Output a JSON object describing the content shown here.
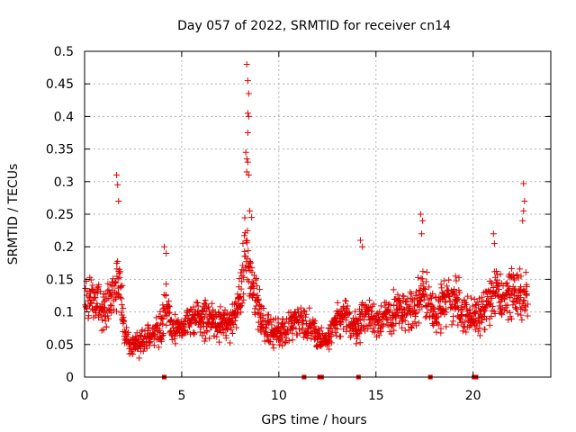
{
  "chart_data": {
    "type": "scatter",
    "title": "Day 057 of 2022, SRMTID for receiver cn14",
    "xlabel": "GPS time / hours",
    "ylabel": "SRMTID / TECUs",
    "xlim": [
      0,
      24
    ],
    "ylim": [
      0,
      0.5
    ],
    "xticks": [
      0,
      5,
      10,
      15,
      20
    ],
    "xtick_labels": [
      "0",
      "5",
      "10",
      "15",
      "20"
    ],
    "yticks": [
      0,
      0.05,
      0.1,
      0.15,
      0.2,
      0.25,
      0.3,
      0.35,
      0.4,
      0.45,
      0.5
    ],
    "ytick_labels": [
      "0",
      "0.05",
      "0.1",
      "0.15",
      "0.2",
      "0.25",
      "0.3",
      "0.35",
      "0.4",
      "0.45",
      "0.5"
    ],
    "grid": true,
    "marker": "+",
    "marker_color": "#e00000",
    "trend": {
      "x": [
        0,
        0.5,
        1,
        1.5,
        1.8,
        2,
        2.3,
        2.8,
        3.5,
        4,
        4.2,
        4.5,
        5,
        5.5,
        6,
        6.5,
        7,
        7.5,
        8,
        8.3,
        8.6,
        9,
        9.3,
        9.8,
        10.3,
        11,
        11.6,
        12,
        12.3,
        13,
        13.5,
        14,
        14.5,
        15,
        15.5,
        16,
        17,
        17.4,
        18,
        18.5,
        19,
        19.5,
        20,
        20.3,
        21,
        21.5,
        22,
        22.5,
        22.8
      ],
      "y": [
        0.12,
        0.12,
        0.1,
        0.12,
        0.16,
        0.08,
        0.05,
        0.05,
        0.07,
        0.075,
        0.12,
        0.07,
        0.075,
        0.09,
        0.085,
        0.09,
        0.08,
        0.08,
        0.12,
        0.2,
        0.15,
        0.1,
        0.08,
        0.065,
        0.07,
        0.09,
        0.08,
        0.065,
        0.05,
        0.085,
        0.09,
        0.075,
        0.1,
        0.085,
        0.09,
        0.1,
        0.1,
        0.13,
        0.1,
        0.115,
        0.12,
        0.1,
        0.095,
        0.09,
        0.13,
        0.12,
        0.13,
        0.12,
        0.12
      ]
    },
    "spikes": [
      {
        "x": 1.65,
        "y": 0.31
      },
      {
        "x": 1.7,
        "y": 0.295
      },
      {
        "x": 1.75,
        "y": 0.27
      },
      {
        "x": 4.1,
        "y": 0.2
      },
      {
        "x": 4.2,
        "y": 0.19
      },
      {
        "x": 8.35,
        "y": 0.48
      },
      {
        "x": 8.4,
        "y": 0.455
      },
      {
        "x": 8.45,
        "y": 0.435
      },
      {
        "x": 8.4,
        "y": 0.405
      },
      {
        "x": 8.45,
        "y": 0.4
      },
      {
        "x": 8.4,
        "y": 0.375
      },
      {
        "x": 8.3,
        "y": 0.345
      },
      {
        "x": 8.35,
        "y": 0.335
      },
      {
        "x": 8.4,
        "y": 0.33
      },
      {
        "x": 8.35,
        "y": 0.315
      },
      {
        "x": 8.45,
        "y": 0.31
      },
      {
        "x": 8.5,
        "y": 0.255
      },
      {
        "x": 8.6,
        "y": 0.245
      },
      {
        "x": 14.2,
        "y": 0.21
      },
      {
        "x": 14.3,
        "y": 0.2
      },
      {
        "x": 17.3,
        "y": 0.25
      },
      {
        "x": 17.4,
        "y": 0.24
      },
      {
        "x": 17.35,
        "y": 0.22
      },
      {
        "x": 22.6,
        "y": 0.297
      },
      {
        "x": 22.65,
        "y": 0.27
      },
      {
        "x": 22.6,
        "y": 0.255
      },
      {
        "x": 22.55,
        "y": 0.24
      },
      {
        "x": 21.05,
        "y": 0.22
      },
      {
        "x": 21.1,
        "y": 0.205
      }
    ],
    "zero_marks_x": [
      4.1,
      11.3,
      12.1,
      12.2,
      14.1,
      17.8,
      20.05,
      20.15
    ]
  }
}
